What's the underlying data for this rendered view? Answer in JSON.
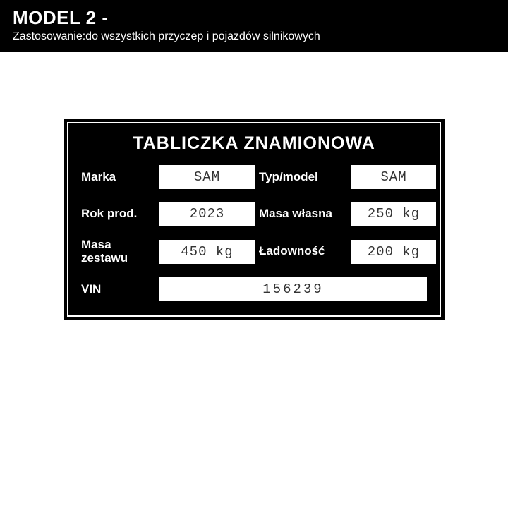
{
  "header": {
    "title": "MODEL 2 -",
    "subtitle": "Zastosowanie:do wszystkich przyczep i pojazdów silnikowych"
  },
  "plate": {
    "title": "TABLICZKA ZNAMIONOWA",
    "background_color": "#000000",
    "text_color": "#ffffff",
    "field_bg": "#ffffff",
    "field_text": "#333333",
    "title_fontsize": 25,
    "label_fontsize": 17,
    "value_fontsize": 19,
    "value_font": "Courier New",
    "rows": [
      {
        "label_left": "Marka",
        "value_left": "SAM",
        "label_right": "Typ/model",
        "value_right": "SAM"
      },
      {
        "label_left": "Rok prod.",
        "value_left": "2023",
        "label_right": "Masa własna",
        "value_right": "250 kg"
      },
      {
        "label_left": "Masa zestawu",
        "value_left": "450 kg",
        "label_right": "Ładowność",
        "value_right": "200 kg"
      }
    ],
    "vin": {
      "label": "VIN",
      "value": "156239"
    }
  }
}
